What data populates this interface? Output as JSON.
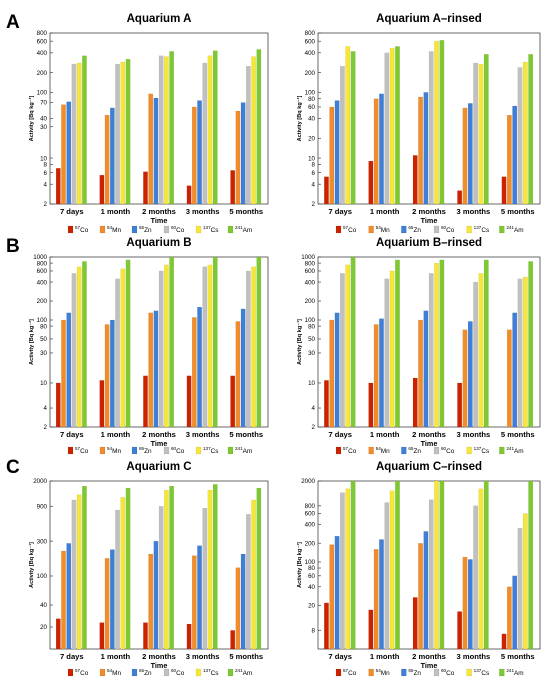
{
  "figure": {
    "row_labels": [
      "A",
      "B",
      "C"
    ]
  },
  "chart_data": [
    {
      "type": "bar",
      "title": "Aquarium A",
      "xlabel": "Time",
      "ylabel": "Activity [Bq kg⁻¹]",
      "yscale": "log",
      "categories": [
        "7 days",
        "1 month",
        "2 months",
        "3 months",
        "5 months"
      ],
      "yticks": [
        "2",
        "4",
        "6",
        "8",
        "10",
        "30",
        "40",
        "70",
        "100",
        "200",
        "400",
        "600",
        "800"
      ],
      "ylim": [
        2,
        800
      ],
      "series": [
        {
          "name": "57Co",
          "color": "#cc2200",
          "values": [
            7,
            5.5,
            6.2,
            3.8,
            6.5
          ]
        },
        {
          "name": "54Mn",
          "color": "#f08c2a",
          "values": [
            65,
            45,
            95,
            60,
            52
          ]
        },
        {
          "name": "65Zn",
          "color": "#3f7fd6",
          "values": [
            72,
            58,
            82,
            75,
            70
          ]
        },
        {
          "name": "60Co",
          "color": "#c0c0c0",
          "values": [
            270,
            270,
            360,
            280,
            250
          ]
        },
        {
          "name": "137Cs",
          "color": "#f5e637",
          "values": [
            280,
            290,
            350,
            360,
            350
          ]
        },
        {
          "name": "241Am",
          "color": "#7ec832",
          "values": [
            360,
            320,
            420,
            430,
            450
          ]
        }
      ]
    },
    {
      "type": "bar",
      "title": "Aquarium A–rinsed",
      "xlabel": "Time",
      "ylabel": "Activity [Bq kg⁻¹]",
      "yscale": "log",
      "categories": [
        "7 days",
        "1 month",
        "2 months",
        "3 months",
        "5 months"
      ],
      "yticks": [
        "2",
        "4",
        "6",
        "8",
        "10",
        "20",
        "40",
        "60",
        "80",
        "100",
        "200",
        "400",
        "600",
        "800"
      ],
      "ylim": [
        2,
        800
      ],
      "series": [
        {
          "name": "57Co",
          "color": "#cc2200",
          "values": [
            5.2,
            9,
            11,
            3.2,
            5.2
          ]
        },
        {
          "name": "54Mn",
          "color": "#f08c2a",
          "values": [
            60,
            80,
            85,
            58,
            45
          ]
        },
        {
          "name": "65Zn",
          "color": "#3f7fd6",
          "values": [
            75,
            95,
            100,
            68,
            62
          ]
        },
        {
          "name": "60Co",
          "color": "#c0c0c0",
          "values": [
            250,
            400,
            420,
            280,
            240
          ]
        },
        {
          "name": "137Cs",
          "color": "#f5e637",
          "values": [
            500,
            470,
            600,
            270,
            290
          ]
        },
        {
          "name": "241Am",
          "color": "#7ec832",
          "values": [
            420,
            500,
            620,
            380,
            380
          ]
        }
      ]
    },
    {
      "type": "bar",
      "title": "Aquarium B",
      "xlabel": "Time",
      "ylabel": "Activity [Bq kg⁻¹]",
      "yscale": "log",
      "categories": [
        "7 days",
        "1 month",
        "2 months",
        "3 months",
        "5 months"
      ],
      "yticks": [
        "2",
        "4",
        "10",
        "30",
        "50",
        "80",
        "100",
        "200",
        "400",
        "600",
        "800",
        "1000"
      ],
      "ylim": [
        2,
        1000
      ],
      "series": [
        {
          "name": "57Co",
          "color": "#cc2200",
          "values": [
            10,
            11,
            13,
            13,
            13
          ]
        },
        {
          "name": "54Mn",
          "color": "#f08c2a",
          "values": [
            100,
            85,
            130,
            110,
            95
          ]
        },
        {
          "name": "65Zn",
          "color": "#3f7fd6",
          "values": [
            130,
            100,
            140,
            160,
            150
          ]
        },
        {
          "name": "60Co",
          "color": "#c0c0c0",
          "values": [
            550,
            450,
            600,
            700,
            600
          ]
        },
        {
          "name": "137Cs",
          "color": "#f5e637",
          "values": [
            700,
            650,
            750,
            750,
            700
          ]
        },
        {
          "name": "241Am",
          "color": "#7ec832",
          "values": [
            850,
            900,
            1000,
            1000,
            1000
          ]
        }
      ]
    },
    {
      "type": "bar",
      "title": "Aquarium B–rinsed",
      "xlabel": "Time",
      "ylabel": "Activity [Bq kg⁻¹]",
      "yscale": "log",
      "categories": [
        "7 days",
        "1 month",
        "2 months",
        "3 months",
        "5 months"
      ],
      "yticks": [
        "2",
        "4",
        "10",
        "30",
        "50",
        "80",
        "100",
        "200",
        "400",
        "600",
        "800",
        "1000"
      ],
      "ylim": [
        2,
        1000
      ],
      "series": [
        {
          "name": "57Co",
          "color": "#cc2200",
          "values": [
            11,
            10,
            12,
            10,
            null
          ]
        },
        {
          "name": "54Mn",
          "color": "#f08c2a",
          "values": [
            100,
            85,
            100,
            70,
            70
          ]
        },
        {
          "name": "65Zn",
          "color": "#3f7fd6",
          "values": [
            130,
            105,
            140,
            95,
            130
          ]
        },
        {
          "name": "60Co",
          "color": "#c0c0c0",
          "values": [
            550,
            450,
            550,
            400,
            450
          ]
        },
        {
          "name": "137Cs",
          "color": "#f5e637",
          "values": [
            750,
            600,
            800,
            550,
            480
          ]
        },
        {
          "name": "241Am",
          "color": "#7ec832",
          "values": [
            1000,
            900,
            900,
            900,
            850
          ]
        }
      ]
    },
    {
      "type": "bar",
      "title": "Aquarium C",
      "xlabel": "Time",
      "ylabel": "Activity [Bq kg⁻¹]",
      "yscale": "log",
      "categories": [
        "7 days",
        "1 month",
        "2 months",
        "3 months",
        "5 months"
      ],
      "yticks": [
        "20",
        "40",
        "100",
        "300",
        "900",
        "2000"
      ],
      "ylim": [
        10,
        2000
      ],
      "series": [
        {
          "name": "57Co",
          "color": "#cc2200",
          "values": [
            26,
            23,
            23,
            22,
            18
          ]
        },
        {
          "name": "54Mn",
          "color": "#f08c2a",
          "values": [
            220,
            175,
            200,
            190,
            130
          ]
        },
        {
          "name": "65Zn",
          "color": "#3f7fd6",
          "values": [
            280,
            230,
            300,
            260,
            200
          ]
        },
        {
          "name": "60Co",
          "color": "#c0c0c0",
          "values": [
            1100,
            800,
            900,
            850,
            700
          ]
        },
        {
          "name": "137Cs",
          "color": "#f5e637",
          "values": [
            1300,
            1200,
            1500,
            1500,
            1100
          ]
        },
        {
          "name": "241Am",
          "color": "#7ec832",
          "values": [
            1700,
            1600,
            1700,
            1800,
            1600
          ]
        }
      ]
    },
    {
      "type": "bar",
      "title": "Aquarium C–rinsed",
      "xlabel": "Time",
      "ylabel": "Activity [Bq kg⁻¹]",
      "yscale": "log",
      "categories": [
        "7 days",
        "1 month",
        "2 months",
        "3 months",
        "5 months"
      ],
      "yticks": [
        "8",
        "20",
        "40",
        "60",
        "80",
        "100",
        "200",
        "400",
        "600",
        "800",
        "2000"
      ],
      "ylim": [
        4,
        2000
      ],
      "series": [
        {
          "name": "57Co",
          "color": "#cc2200",
          "values": [
            22,
            17,
            27,
            16,
            7
          ]
        },
        {
          "name": "54Mn",
          "color": "#f08c2a",
          "values": [
            190,
            160,
            200,
            120,
            40
          ]
        },
        {
          "name": "65Zn",
          "color": "#3f7fd6",
          "values": [
            260,
            230,
            310,
            110,
            60
          ]
        },
        {
          "name": "60Co",
          "color": "#c0c0c0",
          "values": [
            1300,
            900,
            1000,
            800,
            350
          ]
        },
        {
          "name": "137Cs",
          "color": "#f5e637",
          "values": [
            1500,
            1400,
            2000,
            1500,
            600
          ]
        },
        {
          "name": "241Am",
          "color": "#7ec832",
          "values": [
            2000,
            2000,
            2000,
            2000,
            2000
          ]
        }
      ]
    }
  ]
}
